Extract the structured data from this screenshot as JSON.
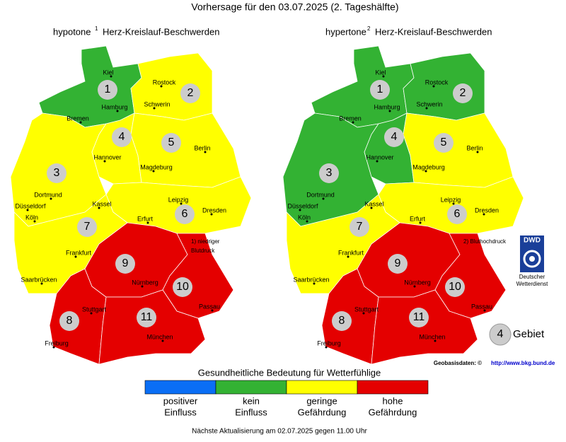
{
  "title": "Vorhersage für den 03.07.2025 (2. Tageshälfte)",
  "maps": [
    {
      "title": "hypotone",
      "mark": "1",
      "subtitle": "Herz-Kreislauf-Beschwerden",
      "note": [
        "1) niedriger",
        "Blutdruck"
      ],
      "regions": [
        {
          "label": "1",
          "level": 1
        },
        {
          "label": "2",
          "level": 2
        },
        {
          "label": "3",
          "level": 2
        },
        {
          "label": "4",
          "level": 2
        },
        {
          "label": "5",
          "level": 2
        },
        {
          "label": "6",
          "level": 2
        },
        {
          "label": "7",
          "level": 2
        },
        {
          "label": "8",
          "level": 3
        },
        {
          "label": "9",
          "level": 3
        },
        {
          "label": "10",
          "level": 3
        },
        {
          "label": "11",
          "level": 3
        }
      ]
    },
    {
      "title": "hypertone",
      "mark": "2",
      "subtitle": "Herz-Kreislauf-Beschwerden",
      "note": [
        "2) Bluthochdruck"
      ],
      "regions": [
        {
          "label": "1",
          "level": 1
        },
        {
          "label": "2",
          "level": 1
        },
        {
          "label": "3",
          "level": 1
        },
        {
          "label": "4",
          "level": 1
        },
        {
          "label": "5",
          "level": 2
        },
        {
          "label": "6",
          "level": 2
        },
        {
          "label": "7",
          "level": 2
        },
        {
          "label": "8",
          "level": 3
        },
        {
          "label": "9",
          "level": 3
        },
        {
          "label": "10",
          "level": 3
        },
        {
          "label": "11",
          "level": 3
        }
      ]
    }
  ],
  "cities": [
    "Kiel",
    "Rostock",
    "Hamburg",
    "Schwerin",
    "Bremen",
    "Hannover",
    "Berlin",
    "Magdeburg",
    "Dortmund",
    "Düsseldorf",
    "Köln",
    "Kassel",
    "Leipzig",
    "Dresden",
    "Erfurt",
    "Frankfurt",
    "Saarbrücken",
    "Nürnberg",
    "Passau",
    "Stuttgart",
    "München",
    "Freiburg"
  ],
  "logo": {
    "name": "DWD",
    "text": [
      "Deutscher",
      "Wetterdienst"
    ]
  },
  "key": {
    "symbol": "4",
    "label": "Gebiet"
  },
  "source": {
    "label": "Geobasisdaten: ©",
    "link": "http://www.bkg.bund.de"
  },
  "legend": {
    "title": "Gesundheitliche Bedeutung für Wetterfühlige",
    "items": [
      {
        "label": [
          "positiver",
          "Einfluss"
        ],
        "color": "#0a6ef5"
      },
      {
        "label": [
          "kein",
          "Einfluss"
        ],
        "color": "#33b233"
      },
      {
        "label": [
          "geringe",
          "Gefährdung"
        ],
        "color": "#ffff00"
      },
      {
        "label": [
          "hohe",
          "Gefährdung"
        ],
        "color": "#e40000"
      }
    ]
  },
  "footer": "Nächste Aktualisierung am 02.07.2025 gegen 11.00 Uhr"
}
